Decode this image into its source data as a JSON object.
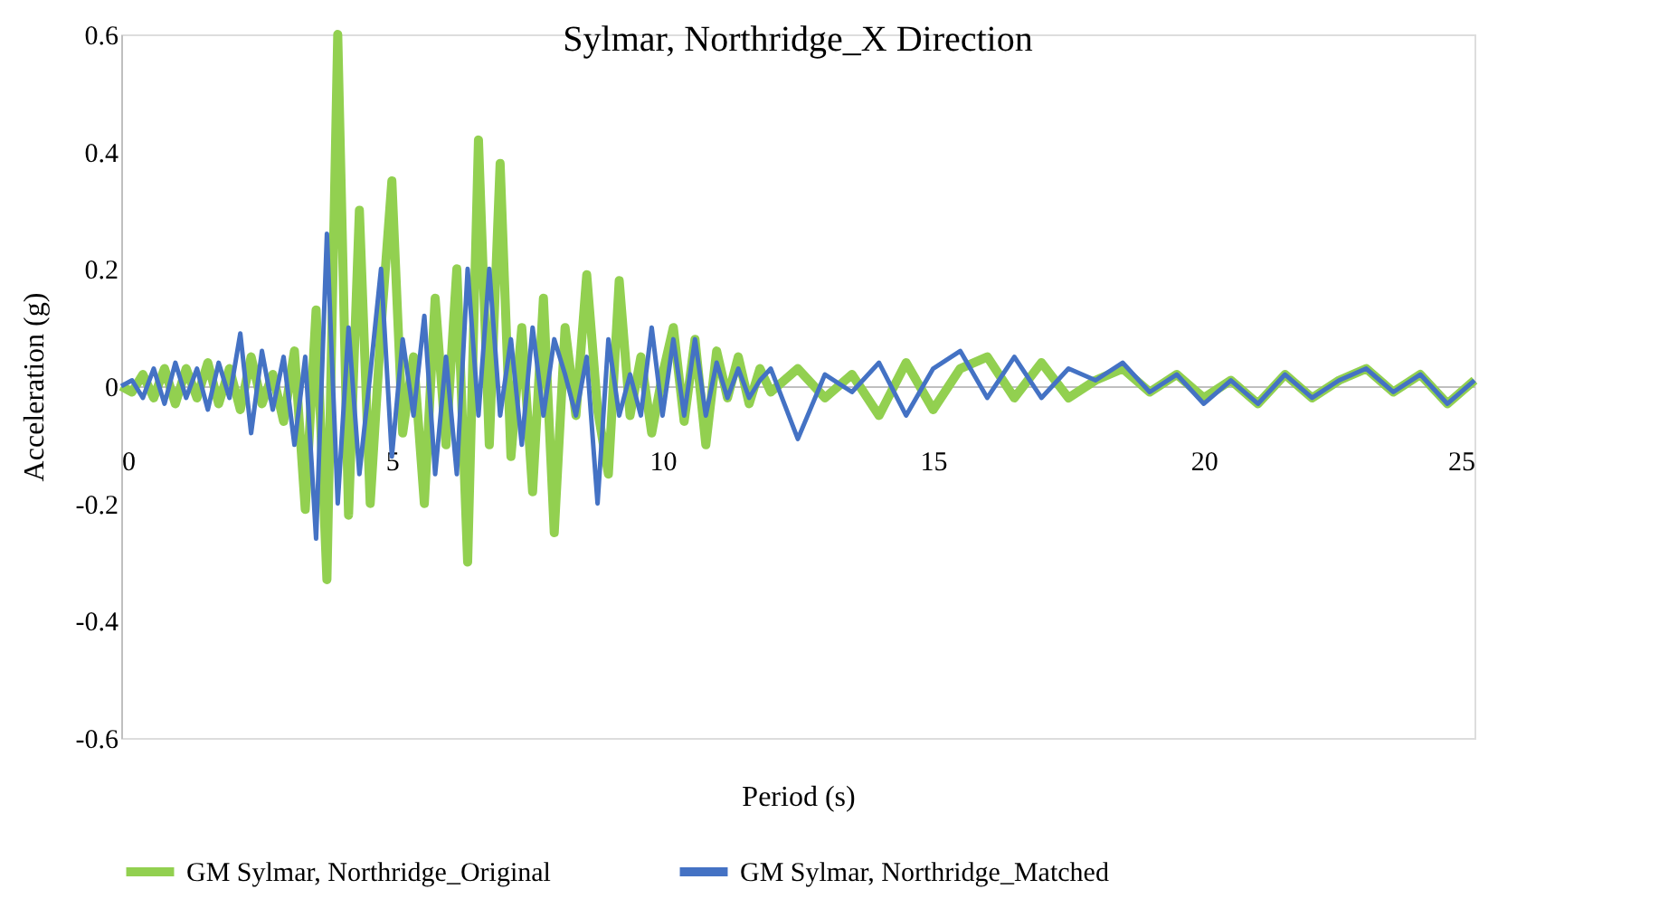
{
  "chart_data": {
    "type": "line",
    "title": "Sylmar, Northridge_X Direction",
    "xlabel": "Period (s)",
    "ylabel": "Acceleration (g)",
    "x": [
      0,
      0.2,
      0.4,
      0.6,
      0.8,
      1,
      1.2,
      1.4,
      1.6,
      1.8,
      2,
      2.2,
      2.4,
      2.6,
      2.8,
      3,
      3.2,
      3.4,
      3.6,
      3.8,
      4,
      4.2,
      4.4,
      4.6,
      4.8,
      5,
      5.2,
      5.4,
      5.6,
      5.8,
      6,
      6.2,
      6.4,
      6.6,
      6.8,
      7,
      7.2,
      7.4,
      7.6,
      7.8,
      8,
      8.2,
      8.4,
      8.6,
      8.8,
      9,
      9.2,
      9.4,
      9.6,
      9.8,
      10,
      10.2,
      10.4,
      10.6,
      10.8,
      11,
      11.2,
      11.4,
      11.6,
      11.8,
      12,
      12.5,
      13,
      13.5,
      14,
      14.5,
      15,
      15.5,
      16,
      16.5,
      17,
      17.5,
      18,
      18.5,
      19,
      19.5,
      20,
      20.5,
      21,
      21.5,
      22,
      22.5,
      23,
      23.5,
      24,
      24.5,
      25
    ],
    "series": [
      {
        "name": "GM Sylmar, Northridge_Original",
        "color": "#92d050",
        "values": [
          0,
          -0.01,
          0.02,
          -0.02,
          0.03,
          -0.03,
          0.03,
          -0.02,
          0.04,
          -0.03,
          0.03,
          -0.04,
          0.05,
          -0.03,
          0.02,
          -0.06,
          0.06,
          -0.21,
          0.13,
          -0.33,
          0.6,
          -0.22,
          0.3,
          -0.2,
          0.1,
          0.35,
          -0.08,
          0.05,
          -0.2,
          0.15,
          -0.1,
          0.2,
          -0.3,
          0.42,
          -0.1,
          0.38,
          -0.12,
          0.1,
          -0.18,
          0.15,
          -0.25,
          0.1,
          -0.05,
          0.19,
          -0.04,
          -0.15,
          0.18,
          -0.05,
          0.05,
          -0.08,
          0.02,
          0.1,
          -0.06,
          0.08,
          -0.1,
          0.06,
          -0.02,
          0.05,
          -0.03,
          0.03,
          -0.01,
          0.03,
          -0.02,
          0.02,
          -0.05,
          0.04,
          -0.04,
          0.03,
          0.05,
          -0.02,
          0.04,
          -0.02,
          0.01,
          0.03,
          -0.01,
          0.02,
          -0.02,
          0.01,
          -0.03,
          0.02,
          -0.02,
          0.01,
          0.03,
          -0.01,
          0.02,
          -0.03,
          0.01
        ]
      },
      {
        "name": "GM Sylmar, Northridge_Matched",
        "color": "#4472c4",
        "values": [
          0,
          0.01,
          -0.02,
          0.03,
          -0.03,
          0.04,
          -0.02,
          0.03,
          -0.04,
          0.04,
          -0.02,
          0.09,
          -0.08,
          0.06,
          -0.04,
          0.05,
          -0.1,
          0.05,
          -0.26,
          0.26,
          -0.2,
          0.1,
          -0.15,
          0.02,
          0.2,
          -0.12,
          0.08,
          -0.05,
          0.12,
          -0.15,
          0.05,
          -0.15,
          0.2,
          -0.05,
          0.2,
          -0.05,
          0.08,
          -0.1,
          0.1,
          -0.05,
          0.08,
          0.02,
          -0.05,
          0.05,
          -0.2,
          0.08,
          -0.05,
          0.02,
          -0.05,
          0.1,
          -0.05,
          0.08,
          -0.05,
          0.08,
          -0.05,
          0.04,
          -0.02,
          0.03,
          -0.02,
          0.01,
          0.03,
          -0.09,
          0.02,
          -0.01,
          0.04,
          -0.05,
          0.03,
          0.06,
          -0.02,
          0.05,
          -0.02,
          0.03,
          0.01,
          0.04,
          -0.01,
          0.02,
          -0.03,
          0.01,
          -0.03,
          0.02,
          -0.02,
          0.01,
          0.03,
          -0.01,
          0.02,
          -0.03,
          0.01
        ]
      }
    ],
    "xlim": [
      0,
      25
    ],
    "xticks": [
      0,
      5,
      10,
      15,
      20,
      25
    ],
    "ylim": [
      -0.6,
      0.6
    ],
    "yticks": [
      -0.6,
      -0.4,
      -0.2,
      0,
      0.2,
      0.4,
      0.6
    ],
    "grid": false,
    "legend": "bottom",
    "marker": "none",
    "line_style": "solid"
  }
}
